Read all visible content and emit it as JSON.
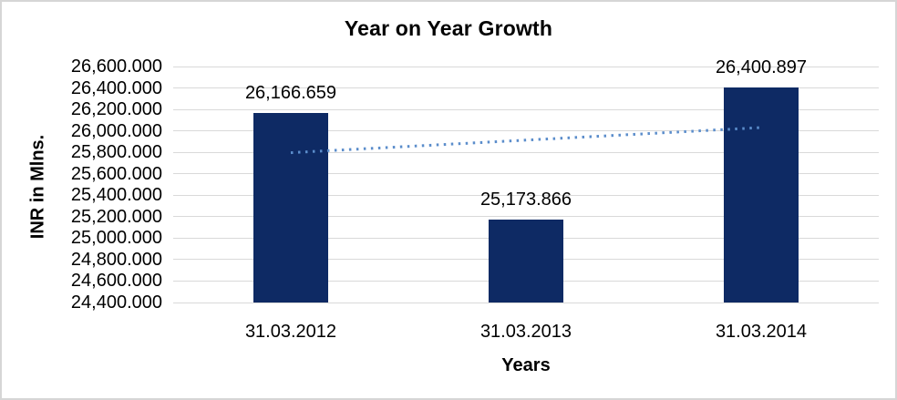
{
  "chart_data": {
    "type": "bar",
    "title": "Year on Year Growth",
    "xlabel": "Years",
    "ylabel": "INR in Mlns.",
    "categories": [
      "31.03.2012",
      "31.03.2013",
      "31.03.2014"
    ],
    "values": [
      26166.659,
      25173.866,
      26400.897
    ],
    "value_labels": [
      "26,166.659",
      "25,173.866",
      "26,400.897"
    ],
    "ylim": [
      24400,
      26600
    ],
    "ytick_step": 200,
    "ytick_labels": [
      "26,600.000",
      "26,400.000",
      "26,200.000",
      "26,000.000",
      "25,800.000",
      "25,600.000",
      "25,400.000",
      "25,200.000",
      "25,000.000",
      "24,800.000",
      "24,600.000",
      "24,400.000"
    ],
    "grid": true,
    "legend": "none",
    "trendline": {
      "type": "linear",
      "line_style": "dotted",
      "start_value": 25796.688,
      "end_value": 26030.926
    },
    "colors": {
      "bar": "#0E2A64",
      "trendline": "#5B8DCB",
      "gridline": "#D9D9D9",
      "text": "#000000",
      "background": "#FFFFFF",
      "frame_border": "#D6D6D6"
    }
  }
}
